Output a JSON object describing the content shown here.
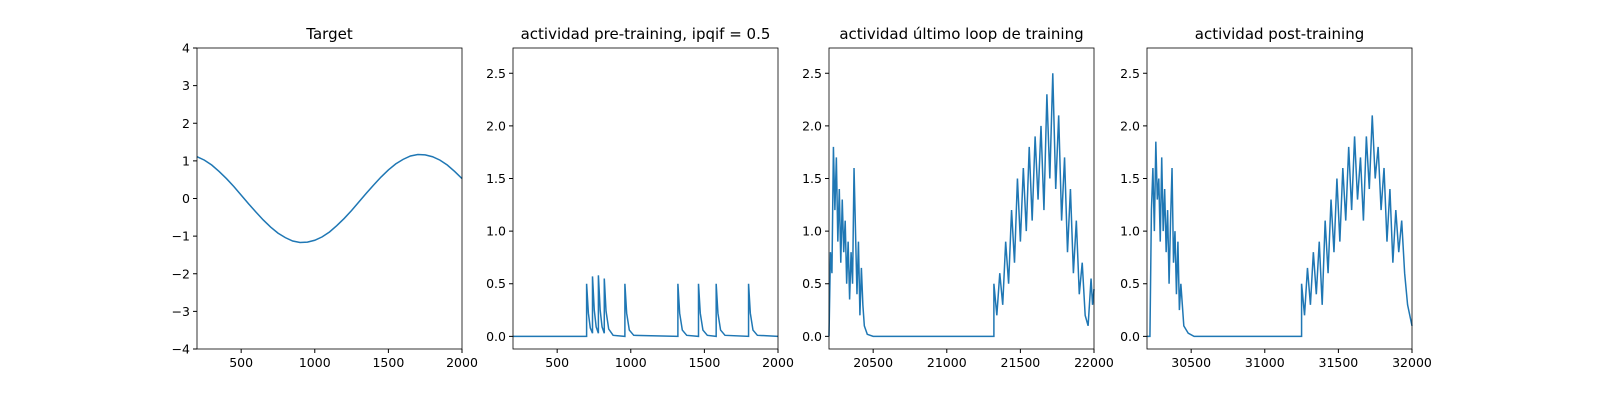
{
  "chart_data": [
    {
      "type": "line",
      "title": "Target",
      "color": "#1f77b4",
      "x": [
        200,
        250,
        300,
        350,
        400,
        450,
        500,
        550,
        600,
        650,
        700,
        750,
        800,
        850,
        900,
        950,
        1000,
        1050,
        1100,
        1150,
        1200,
        1250,
        1300,
        1350,
        1400,
        1450,
        1500,
        1550,
        1600,
        1650,
        1700,
        1750,
        1800,
        1850,
        1900,
        1950,
        2000
      ],
      "values": [
        1.11,
        1.02,
        0.89,
        0.72,
        0.53,
        0.32,
        0.09,
        -0.14,
        -0.36,
        -0.57,
        -0.76,
        -0.92,
        -1.04,
        -1.13,
        -1.17,
        -1.16,
        -1.11,
        -1.02,
        -0.89,
        -0.72,
        -0.53,
        -0.32,
        -0.09,
        0.14,
        0.36,
        0.57,
        0.76,
        0.92,
        1.04,
        1.13,
        1.17,
        1.16,
        1.11,
        1.02,
        0.89,
        0.72,
        0.53
      ],
      "xlim": [
        200,
        2000
      ],
      "xticks": [
        500,
        1000,
        1500,
        2000
      ],
      "ylim": [
        -4,
        4
      ],
      "yticks": [
        {
          "value": -4,
          "label": "−4"
        },
        {
          "value": -3,
          "label": "−3"
        },
        {
          "value": -2,
          "label": "−2"
        },
        {
          "value": -1,
          "label": "−1"
        },
        0,
        1,
        2,
        3,
        4
      ]
    },
    {
      "type": "line",
      "title": "actividad pre-training, ipqif = 0.5",
      "color": "#1f77b4",
      "x": [
        200,
        700,
        700,
        712,
        725,
        740,
        740,
        752,
        765,
        780,
        780,
        792,
        805,
        820,
        820,
        832,
        850,
        880,
        960,
        960,
        972,
        990,
        1020,
        1320,
        1320,
        1332,
        1350,
        1380,
        1460,
        1460,
        1472,
        1490,
        1520,
        1580,
        1580,
        1592,
        1610,
        1640,
        1800,
        1800,
        1812,
        1830,
        1860,
        2000
      ],
      "values": [
        0,
        0,
        0.5,
        0.22,
        0.08,
        0.03,
        0.57,
        0.25,
        0.09,
        0.03,
        0.58,
        0.25,
        0.09,
        0.03,
        0.55,
        0.24,
        0.07,
        0.01,
        0,
        0.5,
        0.22,
        0.06,
        0.01,
        0,
        0.5,
        0.22,
        0.06,
        0.01,
        0,
        0.5,
        0.22,
        0.06,
        0.01,
        0,
        0.5,
        0.22,
        0.06,
        0.01,
        0,
        0.5,
        0.22,
        0.06,
        0.01,
        0
      ],
      "xlim": [
        200,
        2000
      ],
      "xticks": [
        500,
        1000,
        1500,
        2000
      ],
      "ylim": [
        -0.12,
        2.74
      ],
      "yticks": [
        {
          "value": 0,
          "label": "0.0"
        },
        0.5,
        {
          "value": 1,
          "label": "1.0"
        },
        1.5,
        {
          "value": 2,
          "label": "2.0"
        },
        2.5
      ]
    },
    {
      "type": "line",
      "title": "actividad último loop de training",
      "color": "#1f77b4",
      "x": [
        20200,
        20210,
        20220,
        20230,
        20240,
        20250,
        20260,
        20270,
        20280,
        20290,
        20300,
        20310,
        20320,
        20330,
        20340,
        20350,
        20360,
        20370,
        20380,
        20390,
        20400,
        20410,
        20420,
        20430,
        20440,
        20460,
        20500,
        21320,
        21320,
        21340,
        21360,
        21380,
        21400,
        21420,
        21440,
        21460,
        21480,
        21500,
        21520,
        21540,
        21560,
        21580,
        21600,
        21620,
        21640,
        21660,
        21680,
        21700,
        21720,
        21740,
        21760,
        21780,
        21800,
        21820,
        21840,
        21860,
        21880,
        21900,
        21920,
        21940,
        21960,
        21980,
        21990,
        22000
      ],
      "values": [
        0,
        0.8,
        0.6,
        1.8,
        1.2,
        1.7,
        0.9,
        1.4,
        0.7,
        1.3,
        0.8,
        1.1,
        0.5,
        0.9,
        0.35,
        0.8,
        0.5,
        1.6,
        1.0,
        0.4,
        0.9,
        0.2,
        0.65,
        0.3,
        0.1,
        0.02,
        0,
        0,
        0.5,
        0.2,
        0.6,
        0.3,
        0.9,
        0.5,
        1.2,
        0.7,
        1.5,
        0.9,
        1.6,
        1.0,
        1.8,
        1.1,
        1.9,
        1.3,
        2.0,
        1.2,
        2.3,
        1.5,
        2.5,
        1.4,
        2.1,
        1.1,
        1.7,
        0.8,
        1.4,
        0.6,
        1.1,
        0.4,
        0.7,
        0.2,
        0.1,
        0.55,
        0.3,
        0.45
      ],
      "xlim": [
        20200,
        22000
      ],
      "xticks": [
        20500,
        21000,
        21500,
        22000
      ],
      "ylim": [
        -0.12,
        2.74
      ],
      "yticks": [
        {
          "value": 0,
          "label": "0.0"
        },
        0.5,
        {
          "value": 1,
          "label": "1.0"
        },
        1.5,
        {
          "value": 2,
          "label": "2.0"
        },
        2.5
      ]
    },
    {
      "type": "line",
      "title": "actividad post-training",
      "color": "#1f77b4",
      "x": [
        30200,
        30220,
        30230,
        30240,
        30250,
        30260,
        30270,
        30280,
        30290,
        30300,
        30310,
        30320,
        30330,
        30340,
        30350,
        30360,
        30370,
        30380,
        30390,
        30400,
        30410,
        30420,
        30430,
        30450,
        30480,
        30520,
        31250,
        31250,
        31270,
        31290,
        31310,
        31330,
        31350,
        31370,
        31390,
        31410,
        31430,
        31450,
        31470,
        31490,
        31510,
        31530,
        31550,
        31570,
        31590,
        31610,
        31630,
        31650,
        31670,
        31690,
        31710,
        31730,
        31750,
        31770,
        31790,
        31810,
        31830,
        31850,
        31870,
        31890,
        31910,
        31930,
        31950,
        31970,
        32000
      ],
      "values": [
        0,
        0,
        1.2,
        1.6,
        1.0,
        1.85,
        1.3,
        1.5,
        0.9,
        1.7,
        1.0,
        1.4,
        0.8,
        1.2,
        0.5,
        1.1,
        1.6,
        0.7,
        1.0,
        0.4,
        0.9,
        0.25,
        0.5,
        0.1,
        0.03,
        0,
        0,
        0.5,
        0.2,
        0.65,
        0.3,
        0.8,
        0.4,
        0.9,
        0.3,
        1.1,
        0.6,
        1.3,
        0.8,
        1.5,
        0.9,
        1.6,
        1.1,
        1.8,
        1.2,
        1.9,
        1.3,
        1.7,
        1.1,
        1.9,
        1.4,
        2.1,
        1.5,
        1.8,
        1.2,
        1.6,
        0.9,
        1.4,
        0.7,
        1.2,
        0.8,
        1.1,
        0.6,
        0.3,
        0.1
      ],
      "xlim": [
        30200,
        32000
      ],
      "xticks": [
        30500,
        31000,
        31500,
        32000
      ],
      "ylim": [
        -0.12,
        2.74
      ],
      "yticks": [
        {
          "value": 0,
          "label": "0.0"
        },
        0.5,
        {
          "value": 1,
          "label": "1.0"
        },
        1.5,
        {
          "value": 2,
          "label": "2.0"
        },
        2.5
      ]
    }
  ]
}
